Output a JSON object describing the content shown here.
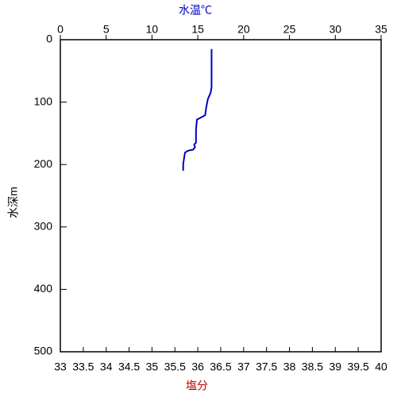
{
  "chart_data": {
    "type": "line",
    "x2_label": "水温℃",
    "x_label": "塩分",
    "y_label": "水深m",
    "x2lim": [
      0,
      35
    ],
    "x2ticks": [
      0,
      5,
      10,
      15,
      20,
      25,
      30,
      35
    ],
    "xlim": [
      33,
      40
    ],
    "xticks": [
      33,
      33.5,
      34,
      34.5,
      35,
      35.5,
      36,
      36.5,
      37,
      37.5,
      38,
      38.5,
      39,
      39.5,
      40
    ],
    "ylim": [
      0,
      500
    ],
    "yticks": [
      0,
      100,
      200,
      300,
      400,
      500
    ],
    "y_inverted": true,
    "series": [
      {
        "name": "水温",
        "color": "#0000c0",
        "axis": "x2",
        "x": [
          16.5,
          16.5,
          16.5,
          16.4,
          16.1,
          15.9,
          15.8,
          15.3,
          14.9,
          14.8,
          14.8,
          14.6,
          14.7,
          14.5,
          13.9,
          13.6,
          13.5,
          13.4,
          13.4
        ],
        "values": [
          15,
          40,
          76,
          85,
          95,
          110,
          121,
          125,
          128,
          145,
          165,
          168,
          172,
          176,
          178,
          181,
          190,
          200,
          210
        ]
      }
    ]
  }
}
